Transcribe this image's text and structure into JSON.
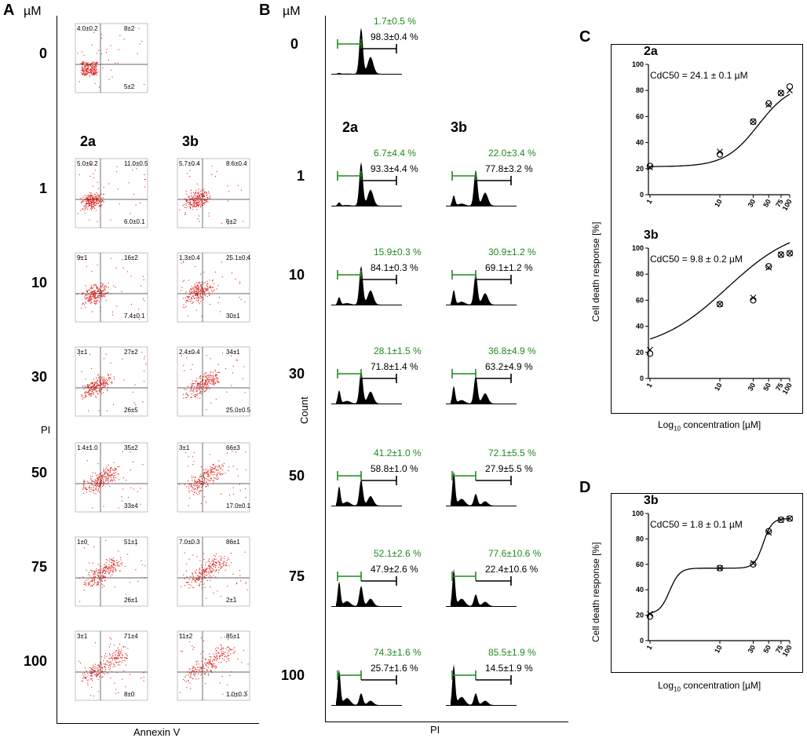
{
  "panelA": {
    "letter": "A",
    "unit": "µM",
    "xlabel": "Annexin V",
    "ylabel": "PI",
    "compounds": [
      "2a",
      "3b"
    ],
    "control": {
      "dose": "0",
      "ul": "4.0±0.2",
      "ur": "8±2",
      "lr": "5±2"
    },
    "rows": [
      {
        "dose": "1",
        "cells": [
          {
            "ul": "5.0±0.2",
            "ur": "11.0±0.5",
            "lr": "6.0±0.1"
          },
          {
            "ul": "5.7±0.4",
            "ur": "8.6±0.4",
            "lr": "6±2"
          }
        ]
      },
      {
        "dose": "10",
        "cells": [
          {
            "ul": "9±1",
            "ur": "16±2",
            "lr": "7.4±0.1"
          },
          {
            "ul": "1.3±0.4",
            "ur": "25.1±0.4",
            "lr": "30±1"
          }
        ]
      },
      {
        "dose": "30",
        "cells": [
          {
            "ul": "3±1",
            "ur": "27±2",
            "lr": "26±5"
          },
          {
            "ul": "2.4±0.4",
            "ur": "34±1",
            "lr": "25.0±0.5"
          }
        ]
      },
      {
        "dose": "50",
        "cells": [
          {
            "ul": "1.4±1.0",
            "ur": "35±2",
            "lr": "33±4"
          },
          {
            "ul": "3±1",
            "ur": "66±3",
            "lr": "17.0±0.1"
          }
        ]
      },
      {
        "dose": "75",
        "cells": [
          {
            "ul": "1±0",
            "ur": "51±1",
            "lr": "26±1"
          },
          {
            "ul": "7.0±0.3",
            "ur": "86±1",
            "lr": "2±1"
          }
        ]
      },
      {
        "dose": "100",
        "cells": [
          {
            "ul": "3±1",
            "ur": "71±4",
            "lr": "8±0"
          },
          {
            "ul": "11±2",
            "ur": "85±1",
            "lr": "1.0±0.3"
          }
        ]
      }
    ]
  },
  "panelB": {
    "letter": "B",
    "unit": "µM",
    "xlabel": "PI",
    "ylabel": "Count",
    "compounds": [
      "2a",
      "3b"
    ],
    "control": {
      "dose": "0",
      "green": "1.7±0.5 %",
      "black": "98.3±0.4 %"
    },
    "rows": [
      {
        "dose": "1",
        "cells": [
          {
            "green": "6.7±4.4 %",
            "black": "93.3±4.4 %"
          },
          {
            "green": "22.0±3.4 %",
            "black": "77.8±3.2 %"
          }
        ]
      },
      {
        "dose": "10",
        "cells": [
          {
            "green": "15.9±0.3 %",
            "black": "84.1±0.3 %"
          },
          {
            "green": "30.9±1.2 %",
            "black": "69.1±1.2 %"
          }
        ]
      },
      {
        "dose": "30",
        "cells": [
          {
            "green": "28.1±1.5 %",
            "black": "71.8±1.4 %"
          },
          {
            "green": "36.8±4.9 %",
            "black": "63.2±4.9 %"
          }
        ]
      },
      {
        "dose": "50",
        "cells": [
          {
            "green": "41.2±1.0 %",
            "black": "58.8±1.0 %"
          },
          {
            "green": "72.1±5.5 %",
            "black": "27.9±5.5 %"
          }
        ]
      },
      {
        "dose": "75",
        "cells": [
          {
            "green": "52.1±2.6 %",
            "black": "47.9±2.6 %"
          },
          {
            "green": "77.6±10.6 %",
            "black": "22.4±10.6 %"
          }
        ]
      },
      {
        "dose": "100",
        "cells": [
          {
            "green": "74.3±1.6 %",
            "black": "25.7±1.6 %"
          },
          {
            "green": "85.5±1.9 %",
            "black": "14.5±1.9 %"
          }
        ]
      }
    ]
  },
  "chart_data": [
    {
      "panel": "C",
      "type": "line",
      "title": "2a",
      "annotation": "CdC50 = 24.1 ± 0.1 µM",
      "x": [
        1,
        10,
        30,
        50,
        75,
        100
      ],
      "x_ticks": [
        "1",
        "10",
        "30",
        "50",
        "75",
        "100"
      ],
      "series": [
        {
          "name": "circles",
          "values": [
            22,
            31,
            56,
            70,
            78,
            83
          ]
        },
        {
          "name": "crosses",
          "values": [
            21,
            33,
            56,
            69,
            78,
            80
          ]
        }
      ],
      "ylim": [
        0,
        100
      ],
      "y_ticks": [
        0,
        20,
        40,
        60,
        80,
        100
      ],
      "xscale": "log",
      "ylabel": "Cell death response [%]",
      "xlabel": "Log10 concentration [µM]"
    },
    {
      "panel": "C",
      "type": "line",
      "title": "3b",
      "annotation": "CdC50 = 9.8 ± 0.2 µM",
      "x": [
        1,
        10,
        30,
        50,
        75,
        100
      ],
      "x_ticks": [
        "1",
        "10",
        "30",
        "50",
        "75",
        "100"
      ],
      "series": [
        {
          "name": "circles",
          "values": [
            19,
            57,
            60,
            86,
            95,
            96
          ]
        },
        {
          "name": "crosses",
          "values": [
            22,
            57,
            62,
            85,
            95,
            96
          ]
        }
      ],
      "ylim": [
        0,
        100
      ],
      "y_ticks": [
        0,
        20,
        40,
        60,
        80,
        100
      ],
      "xscale": "log"
    },
    {
      "panel": "D",
      "type": "line",
      "title": "3b",
      "annotation": "CdC50 = 1.8 ± 0.1 µM",
      "x": [
        1,
        10,
        30,
        50,
        75,
        100
      ],
      "x_ticks": [
        "1",
        "10",
        "30",
        "50",
        "75",
        "100"
      ],
      "series": [
        {
          "name": "circles",
          "values": [
            19,
            57,
            60,
            86,
            95,
            96
          ]
        },
        {
          "name": "crosses",
          "values": [
            21,
            57,
            61,
            85,
            95,
            96
          ]
        }
      ],
      "ylim": [
        0,
        100
      ],
      "y_ticks": [
        0,
        20,
        40,
        60,
        80,
        100
      ],
      "xscale": "log",
      "ylabel": "Cell death response [%]",
      "xlabel": "Log10 concentration [µM]"
    }
  ],
  "panelC": {
    "letter": "C",
    "ylabel": "Cell death response [%]",
    "xlabel_main": "Log",
    "xlabel_sub": "10",
    "xlabel_rest": " concentration [µM]"
  },
  "panelD": {
    "letter": "D",
    "ylabel": "Cell death response [%]",
    "xlabel_main": "Log",
    "xlabel_sub": "10",
    "xlabel_rest": " concentration [µM]"
  }
}
